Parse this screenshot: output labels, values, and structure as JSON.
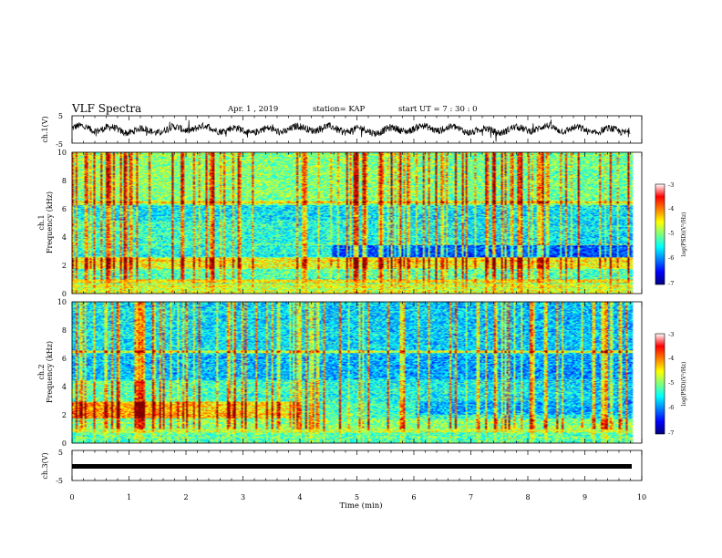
{
  "header": {
    "title": "VLF Spectra",
    "date": "Apr. 1 , 2019",
    "station": "station= KAP",
    "start": "start  UT =   7 : 30 : 0"
  },
  "chart_data": [
    {
      "type": "line",
      "ylabel": "ch.1(V)",
      "ylim": [
        -5,
        5
      ],
      "yticks": [
        "5",
        "-5"
      ],
      "xlim": [
        0,
        10
      ],
      "description_series": "waveform"
    },
    {
      "type": "heatmap",
      "ylabel": "ch.1 Frequency (kHz)",
      "ylim": [
        0,
        10
      ],
      "yticks": [
        "0",
        "2",
        "4",
        "6",
        "8",
        "10"
      ],
      "xlim": [
        0,
        10
      ],
      "colorbar": {
        "label": "log(PSD)(V²/Hz)",
        "ticks": [
          "-3",
          "-4",
          "-5",
          "-6",
          "-7"
        ],
        "range": [
          -7,
          -3
        ]
      }
    },
    {
      "type": "heatmap",
      "ylabel": "ch.2 Frequency (kHz)",
      "ylim": [
        0,
        10
      ],
      "yticks": [
        "0",
        "2",
        "4",
        "6",
        "8",
        "10"
      ],
      "xlim": [
        0,
        10
      ],
      "colorbar": {
        "label": "log(PSD)(V²/Hz)",
        "ticks": [
          "-3",
          "-4",
          "-5",
          "-6",
          "-7"
        ],
        "range": [
          -7,
          -3
        ]
      }
    },
    {
      "type": "line",
      "ylabel": "ch.3(V)",
      "ylim": [
        -5,
        5
      ],
      "yticks": [
        "5",
        "-5"
      ],
      "xlim": [
        0,
        10
      ],
      "xlabel": "Time  (min)",
      "xticks": [
        "0",
        "1",
        "2",
        "3",
        "4",
        "5",
        "6",
        "7",
        "8",
        "9",
        "10"
      ]
    }
  ],
  "colors": {
    "jet": [
      "#00007f",
      "#0000ff",
      "#007fff",
      "#00ffff",
      "#7fff7f",
      "#ffff00",
      "#ff7f00",
      "#ff0000",
      "#7f0000"
    ]
  }
}
